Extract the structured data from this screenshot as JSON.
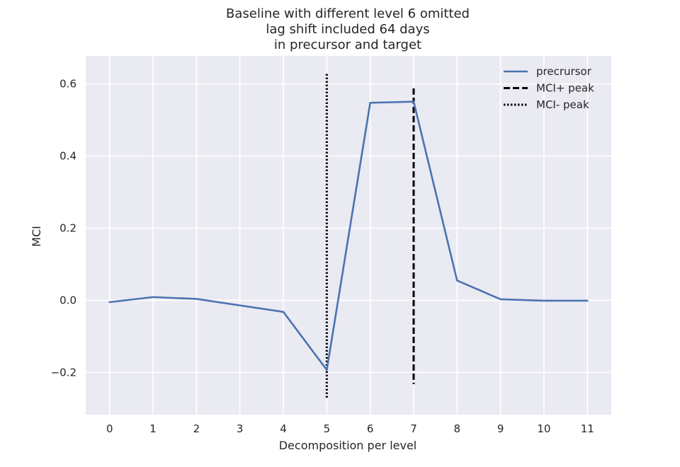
{
  "chart_data": {
    "type": "line",
    "title_lines": [
      "Baseline with different level 6 omitted",
      "lag shift included 64 days",
      "in precursor and target"
    ],
    "xlabel": "Decomposition per level",
    "ylabel": "MCI",
    "x": [
      0,
      1,
      2,
      3,
      4,
      5,
      6,
      7,
      8,
      9,
      10,
      11
    ],
    "x_ticks": [
      "0",
      "1",
      "2",
      "3",
      "4",
      "5",
      "6",
      "7",
      "8",
      "9",
      "10",
      "11"
    ],
    "y_ticks": [
      {
        "value": -0.2,
        "label": "−0.2"
      },
      {
        "value": 0.0,
        "label": "0.0"
      },
      {
        "value": 0.2,
        "label": "0.2"
      },
      {
        "value": 0.4,
        "label": "0.4"
      },
      {
        "value": 0.6,
        "label": "0.6"
      }
    ],
    "xlim": [
      -0.55,
      11.55
    ],
    "ylim": [
      -0.317,
      0.678
    ],
    "grid": true,
    "legend_position": "top-right",
    "background_color": "#eaeaf2",
    "series": [
      {
        "name": "precrursor",
        "color": "#4c72b0",
        "style": "solid",
        "values": [
          -0.005,
          0.009,
          0.004,
          -0.014,
          -0.032,
          -0.193,
          0.548,
          0.551,
          0.055,
          0.003,
          -0.001,
          -0.001
        ]
      }
    ],
    "vlines": [
      {
        "name": "MCI+ peak",
        "x": 7,
        "ymin": -0.232,
        "ymax": 0.588,
        "style": "dashed",
        "color": "#000000"
      },
      {
        "name": "MCI- peak",
        "x": 5,
        "ymin": -0.272,
        "ymax": 0.628,
        "style": "dotted",
        "color": "#000000"
      }
    ]
  }
}
